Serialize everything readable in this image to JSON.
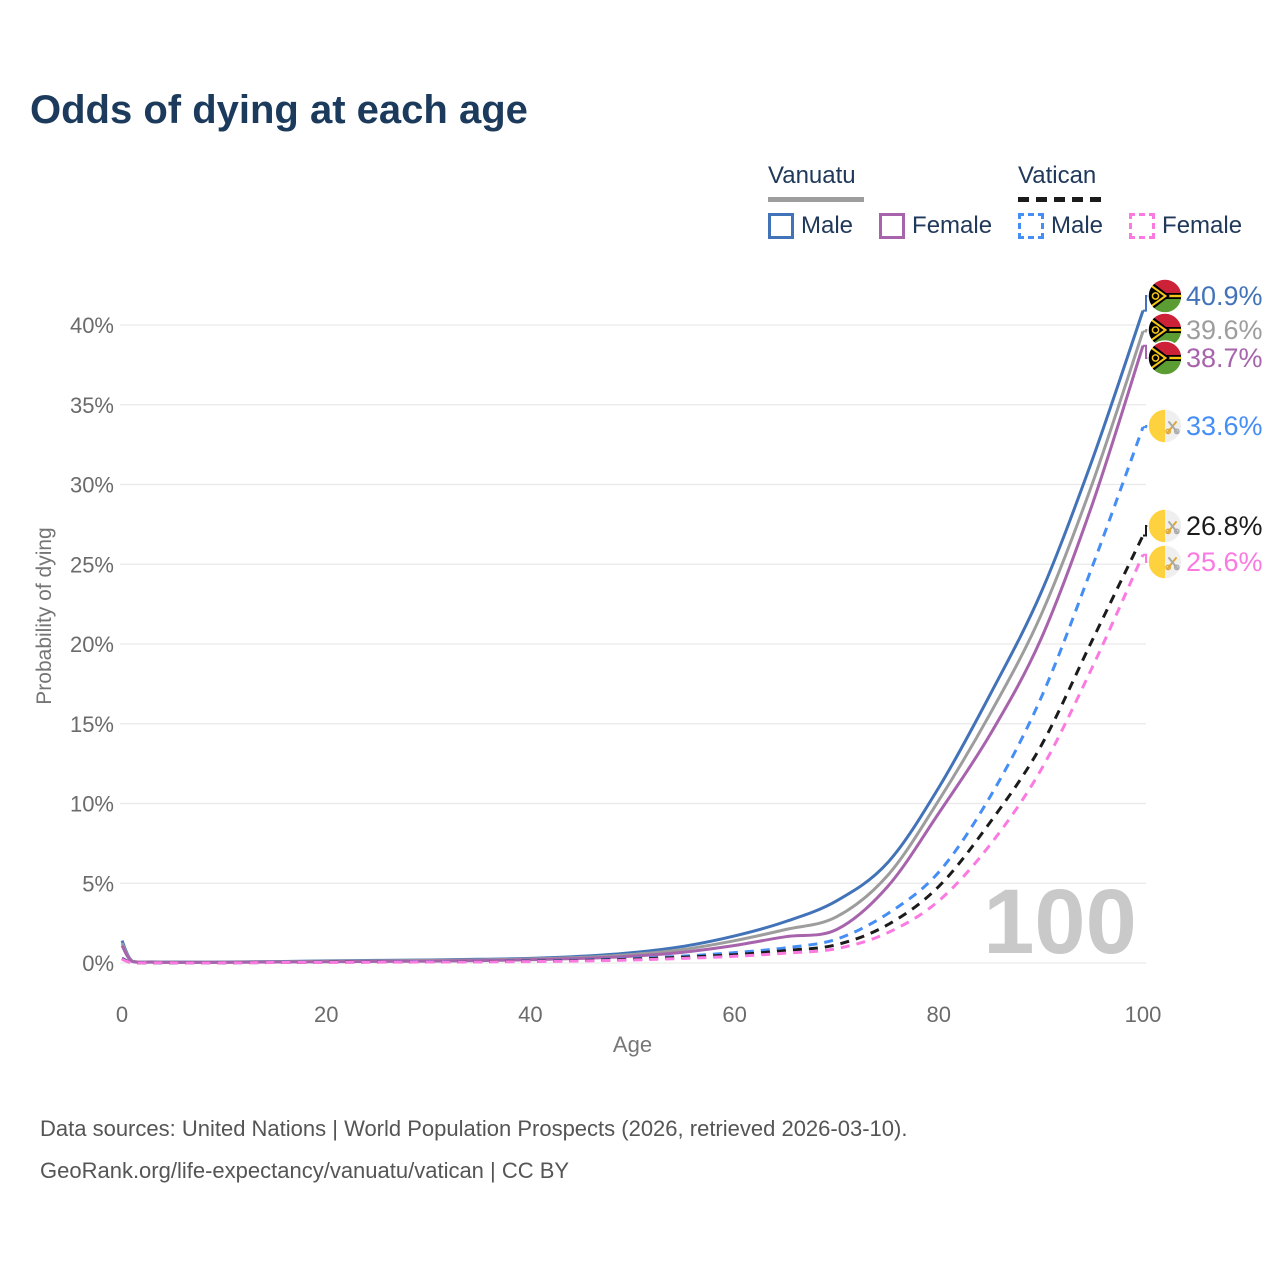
{
  "title": "Odds of dying at each age",
  "watermark": {
    "text": "100"
  },
  "legend": {
    "groups": [
      {
        "label": "Vanuatu",
        "style": "solid",
        "items": [
          {
            "label": "Male",
            "series": "Vanuatu Male"
          },
          {
            "label": "Female",
            "series": "Vanuatu Female"
          }
        ]
      },
      {
        "label": "Vatican",
        "style": "dashed",
        "items": [
          {
            "label": "Male",
            "series": "Vatican Male"
          },
          {
            "label": "Female",
            "series": "Vatican Female"
          }
        ]
      }
    ]
  },
  "axes": {
    "x_label": "Age",
    "y_label": "Probability of dying",
    "x_ticks": [
      {
        "label": "0",
        "age": 0
      },
      {
        "label": "20",
        "age": 20
      },
      {
        "label": "40",
        "age": 40
      },
      {
        "label": "60",
        "age": 60
      },
      {
        "label": "80",
        "age": 80
      },
      {
        "label": "100",
        "age": 100
      }
    ],
    "y_ticks": [
      {
        "label": "0%",
        "pct": 0
      },
      {
        "label": "5%",
        "pct": 5
      },
      {
        "label": "10%",
        "pct": 10
      },
      {
        "label": "15%",
        "pct": 15
      },
      {
        "label": "20%",
        "pct": 20
      },
      {
        "label": "25%",
        "pct": 25
      },
      {
        "label": "30%",
        "pct": 30
      },
      {
        "label": "35%",
        "pct": 35
      },
      {
        "label": "40%",
        "pct": 40
      }
    ]
  },
  "footer": {
    "line1": "Data sources: United Nations | World Population Prospects (2026, retrieved 2026-03-10).",
    "line2": "GeoRank.org/life-expectancy/vanuatu/vatican | CC BY"
  },
  "chart_data": {
    "type": "line",
    "title": "Odds of dying at each age",
    "xlabel": "Age",
    "ylabel": "Probability of dying",
    "xlim": [
      0,
      100
    ],
    "ylim_pct": [
      0,
      42
    ],
    "grid": "horizontal-only",
    "age_indicator": "100",
    "legend_position": "top-right",
    "series": [
      {
        "name": "Vanuatu Male",
        "country": "Vanuatu",
        "sex": "Male",
        "style": "solid",
        "color": "#4273b8",
        "flag": "vanuatu",
        "end_label": "40.9%",
        "end_value_pct": 40.9,
        "points_age_pct": [
          [
            0,
            1.4
          ],
          [
            1,
            0.12
          ],
          [
            3,
            0.07
          ],
          [
            5,
            0.06
          ],
          [
            10,
            0.06
          ],
          [
            15,
            0.09
          ],
          [
            20,
            0.13
          ],
          [
            25,
            0.16
          ],
          [
            30,
            0.19
          ],
          [
            35,
            0.23
          ],
          [
            40,
            0.29
          ],
          [
            45,
            0.42
          ],
          [
            50,
            0.65
          ],
          [
            55,
            1.05
          ],
          [
            60,
            1.7
          ],
          [
            65,
            2.6
          ],
          [
            70,
            3.9
          ],
          [
            75,
            6.3
          ],
          [
            80,
            11.0
          ],
          [
            85,
            16.8
          ],
          [
            90,
            23.2
          ],
          [
            95,
            31.5
          ],
          [
            100,
            40.9
          ]
        ]
      },
      {
        "name": "Vanuatu Both sexes",
        "country": "Vanuatu",
        "sex": "Both",
        "style": "solid",
        "color": "#9d9d9d",
        "flag": "vanuatu",
        "end_label": "39.6%",
        "end_value_pct": 39.6,
        "points_age_pct": [
          [
            0,
            1.25
          ],
          [
            1,
            0.11
          ],
          [
            3,
            0.06
          ],
          [
            5,
            0.05
          ],
          [
            10,
            0.05
          ],
          [
            15,
            0.08
          ],
          [
            20,
            0.11
          ],
          [
            25,
            0.13
          ],
          [
            30,
            0.16
          ],
          [
            35,
            0.19
          ],
          [
            40,
            0.25
          ],
          [
            45,
            0.35
          ],
          [
            50,
            0.53
          ],
          [
            55,
            0.85
          ],
          [
            60,
            1.4
          ],
          [
            65,
            2.1
          ],
          [
            70,
            2.9
          ],
          [
            75,
            5.5
          ],
          [
            80,
            10.2
          ],
          [
            85,
            15.6
          ],
          [
            90,
            21.8
          ],
          [
            95,
            30.0
          ],
          [
            100,
            39.6
          ]
        ]
      },
      {
        "name": "Vanuatu Female",
        "country": "Vanuatu",
        "sex": "Female",
        "style": "solid",
        "color": "#a763ab",
        "flag": "vanuatu",
        "end_label": "38.7%",
        "end_value_pct": 38.7,
        "points_age_pct": [
          [
            0,
            1.1
          ],
          [
            1,
            0.1
          ],
          [
            3,
            0.05
          ],
          [
            5,
            0.04
          ],
          [
            10,
            0.04
          ],
          [
            15,
            0.06
          ],
          [
            20,
            0.08
          ],
          [
            25,
            0.1
          ],
          [
            30,
            0.12
          ],
          [
            35,
            0.15
          ],
          [
            40,
            0.2
          ],
          [
            45,
            0.29
          ],
          [
            50,
            0.43
          ],
          [
            55,
            0.68
          ],
          [
            60,
            1.1
          ],
          [
            65,
            1.65
          ],
          [
            70,
            2.1
          ],
          [
            75,
            4.8
          ],
          [
            80,
            9.4
          ],
          [
            85,
            14.3
          ],
          [
            90,
            20.3
          ],
          [
            95,
            28.7
          ],
          [
            100,
            38.7
          ]
        ]
      },
      {
        "name": "Vatican Male",
        "country": "Vatican",
        "sex": "Male",
        "style": "dashed",
        "color": "#458ef5",
        "flag": "vatican",
        "end_label": "33.6%",
        "end_value_pct": 33.6,
        "points_age_pct": [
          [
            0,
            0.3
          ],
          [
            1,
            0.03
          ],
          [
            3,
            0.02
          ],
          [
            5,
            0.02
          ],
          [
            10,
            0.02
          ],
          [
            15,
            0.04
          ],
          [
            20,
            0.06
          ],
          [
            25,
            0.07
          ],
          [
            30,
            0.08
          ],
          [
            35,
            0.1
          ],
          [
            40,
            0.13
          ],
          [
            45,
            0.19
          ],
          [
            50,
            0.28
          ],
          [
            55,
            0.43
          ],
          [
            60,
            0.65
          ],
          [
            65,
            0.95
          ],
          [
            70,
            1.5
          ],
          [
            75,
            3.1
          ],
          [
            80,
            5.7
          ],
          [
            85,
            10.4
          ],
          [
            90,
            16.6
          ],
          [
            95,
            24.8
          ],
          [
            100,
            33.6
          ]
        ]
      },
      {
        "name": "Vatican Both sexes",
        "country": "Vatican",
        "sex": "Both",
        "style": "dashed",
        "color": "#1b1b1b",
        "flag": "vatican",
        "end_label": "26.8%",
        "end_value_pct": 26.8,
        "points_age_pct": [
          [
            0,
            0.27
          ],
          [
            1,
            0.03
          ],
          [
            3,
            0.02
          ],
          [
            5,
            0.02
          ],
          [
            10,
            0.02
          ],
          [
            15,
            0.03
          ],
          [
            20,
            0.05
          ],
          [
            25,
            0.06
          ],
          [
            30,
            0.07
          ],
          [
            35,
            0.09
          ],
          [
            40,
            0.11
          ],
          [
            45,
            0.16
          ],
          [
            50,
            0.24
          ],
          [
            55,
            0.36
          ],
          [
            60,
            0.52
          ],
          [
            65,
            0.78
          ],
          [
            70,
            1.15
          ],
          [
            75,
            2.4
          ],
          [
            80,
            4.8
          ],
          [
            85,
            8.8
          ],
          [
            90,
            13.6
          ],
          [
            95,
            20.2
          ],
          [
            100,
            26.8
          ]
        ]
      },
      {
        "name": "Vatican Female",
        "country": "Vatican",
        "sex": "Female",
        "style": "dashed",
        "color": "#fb7ae2",
        "flag": "vatican",
        "end_label": "25.6%",
        "end_value_pct": 25.6,
        "points_age_pct": [
          [
            0,
            0.24
          ],
          [
            1,
            0.02
          ],
          [
            3,
            0.02
          ],
          [
            5,
            0.01
          ],
          [
            10,
            0.01
          ],
          [
            15,
            0.03
          ],
          [
            20,
            0.04
          ],
          [
            25,
            0.05
          ],
          [
            30,
            0.06
          ],
          [
            35,
            0.07
          ],
          [
            40,
            0.09
          ],
          [
            45,
            0.13
          ],
          [
            50,
            0.19
          ],
          [
            55,
            0.29
          ],
          [
            60,
            0.42
          ],
          [
            65,
            0.62
          ],
          [
            70,
            0.9
          ],
          [
            75,
            1.9
          ],
          [
            80,
            3.9
          ],
          [
            85,
            7.4
          ],
          [
            90,
            12.1
          ],
          [
            95,
            18.5
          ],
          [
            100,
            25.6
          ]
        ]
      }
    ],
    "colors": {
      "title_text": "#1c3a5c",
      "tick_text": "#6b6b6b",
      "gridline": "#e9e9e9",
      "watermark": "#c9c9c9",
      "footer_text": "#555555"
    }
  }
}
